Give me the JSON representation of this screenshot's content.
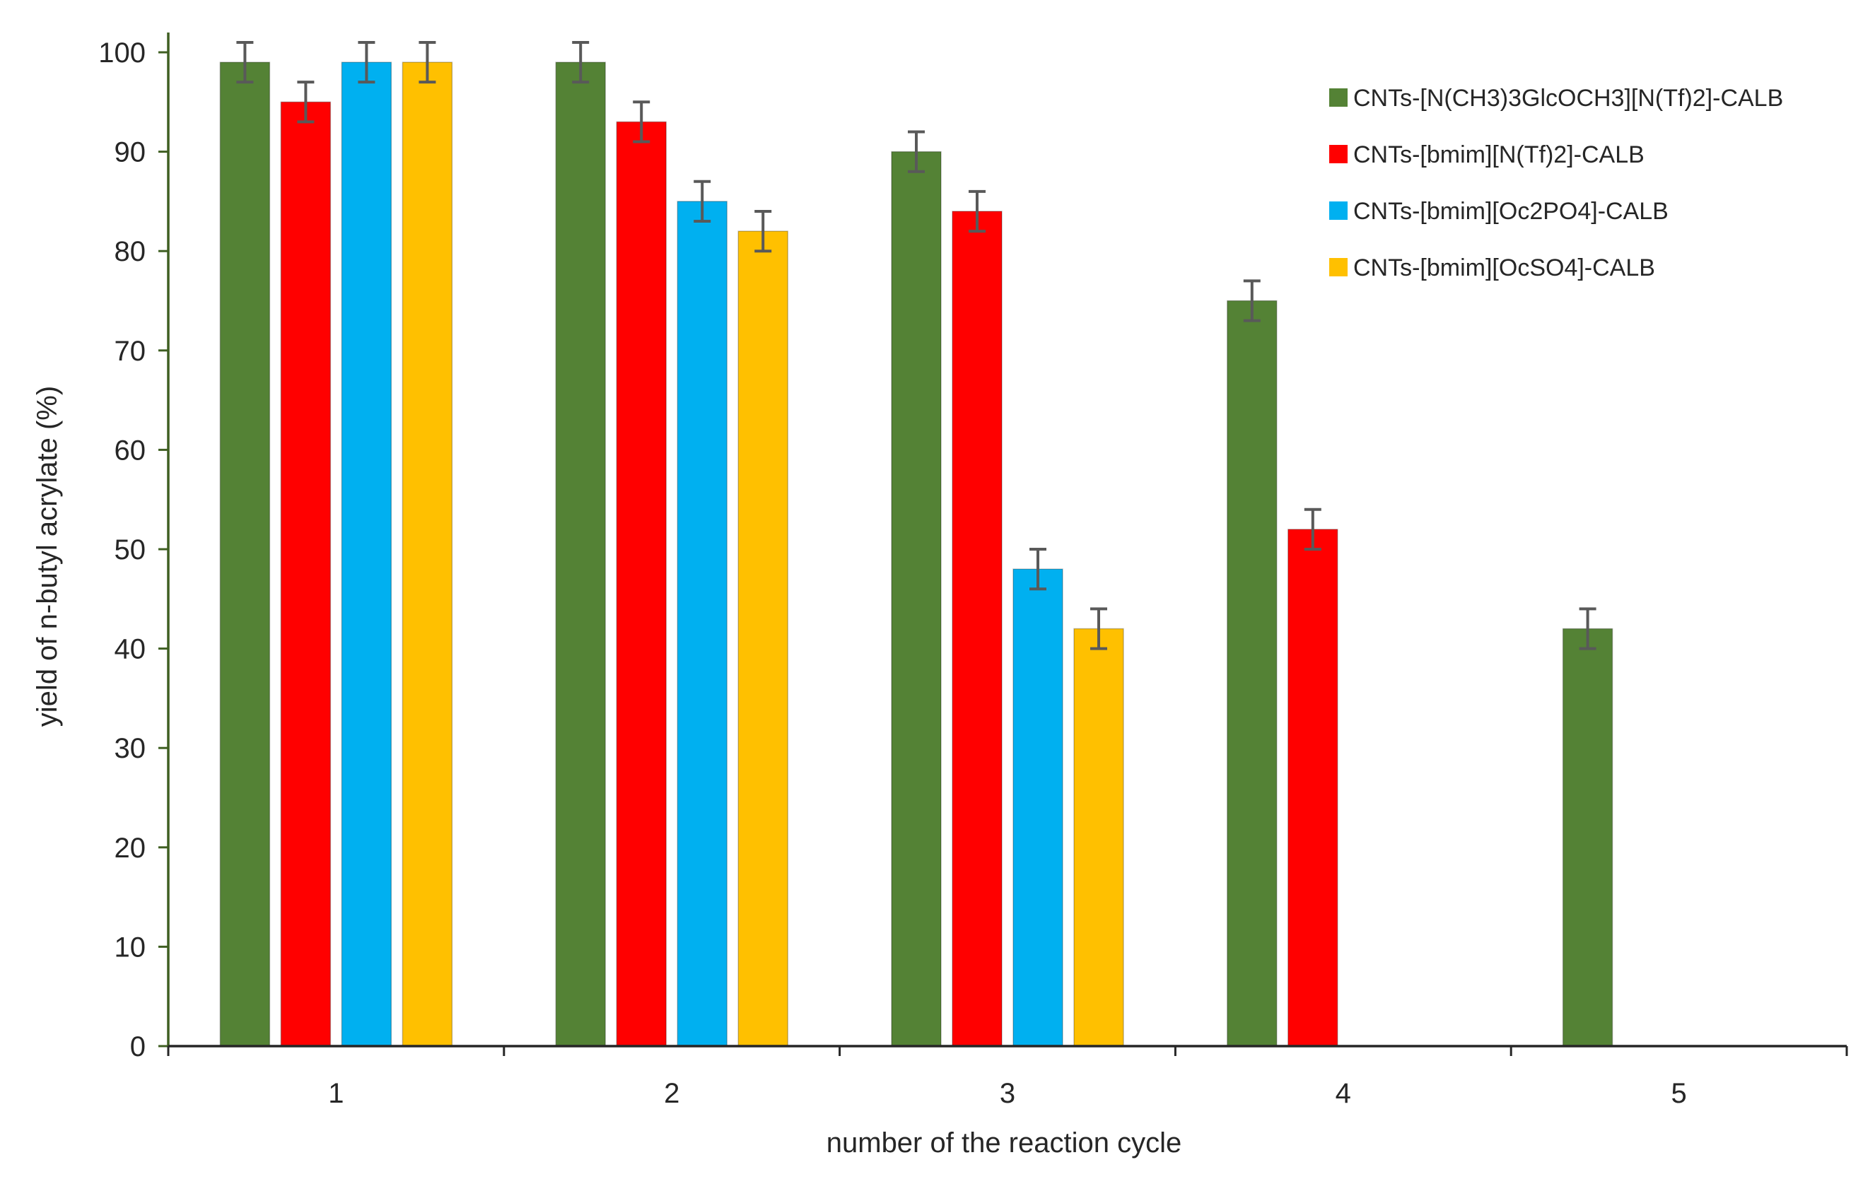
{
  "chart_data": {
    "type": "bar",
    "categories": [
      "1",
      "2",
      "3",
      "4",
      "5"
    ],
    "xlabel": "number of the reaction cycle",
    "ylabel": "yield of n-butyl acrylate (%)",
    "ylim": [
      0,
      100
    ],
    "yticks": [
      0,
      10,
      20,
      30,
      40,
      50,
      60,
      70,
      80,
      90,
      100
    ],
    "grid": false,
    "legend_position": "top-right",
    "error_bars": true,
    "series": [
      {
        "name": "CNTs-[N(CH3)3GlcOCH3][N(Tf)2]-CALB",
        "color": "#548235",
        "values": [
          99,
          99,
          90,
          75,
          42
        ],
        "errors": [
          2,
          2,
          2,
          2,
          2
        ]
      },
      {
        "name": "CNTs-[bmim][N(Tf)2]-CALB",
        "color": "#ff0000",
        "values": [
          95,
          93,
          84,
          52,
          null
        ],
        "errors": [
          2,
          2,
          2,
          2,
          null
        ]
      },
      {
        "name": "CNTs-[bmim][Oc2PO4]-CALB",
        "color": "#00b0f0",
        "values": [
          99,
          85,
          48,
          null,
          null
        ],
        "errors": [
          2,
          2,
          2,
          null,
          null
        ]
      },
      {
        "name": "CNTs-[bmim][OcSO4]-CALB",
        "color": "#ffc000",
        "values": [
          99,
          82,
          42,
          null,
          null
        ],
        "errors": [
          2,
          2,
          2,
          null,
          null
        ]
      }
    ]
  }
}
